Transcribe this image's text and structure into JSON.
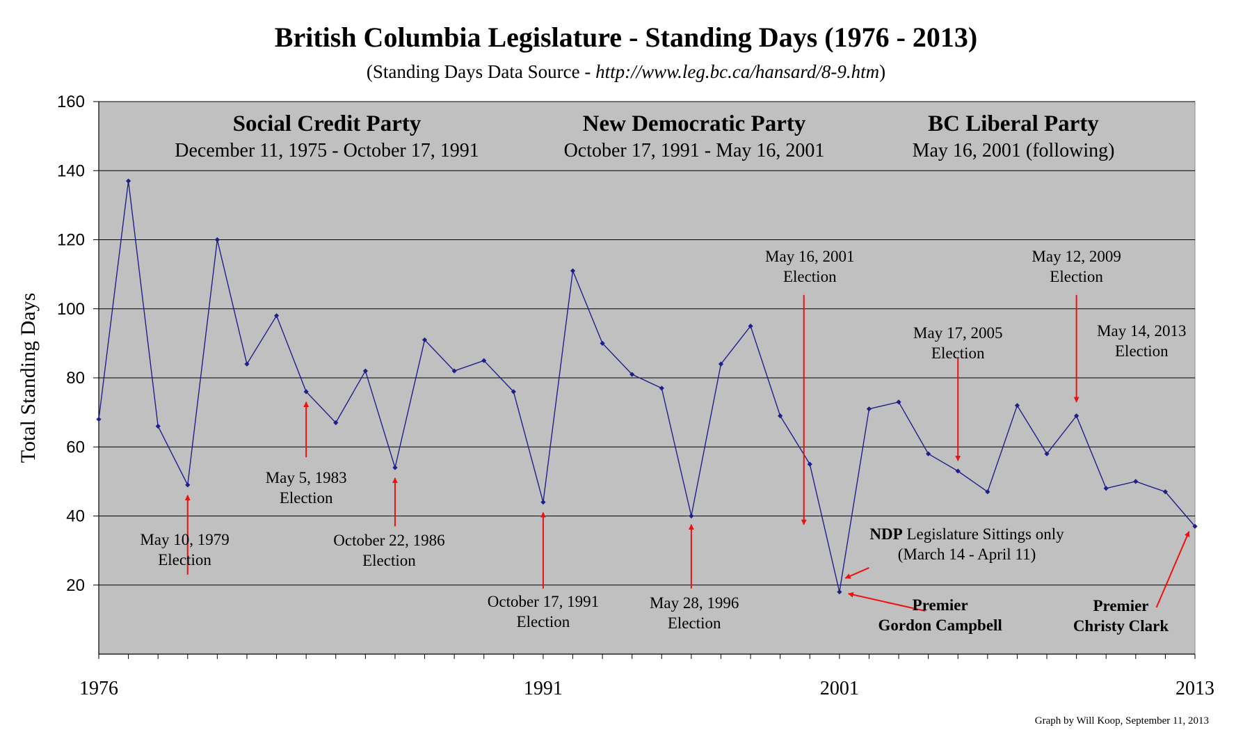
{
  "chart_data": {
    "type": "line",
    "title": "British Columbia Legislature - Standing Days (1976 - 2013)",
    "subtitle_prefix": "(Standing Days Data Source - ",
    "subtitle_url": "http://www.leg.bc.ca/hansard/8-9.htm",
    "subtitle_suffix": ")",
    "ylabel": "Total Standing Days",
    "xlabel": "",
    "xlim": [
      1976,
      2013
    ],
    "ylim": [
      0,
      160
    ],
    "yticks": [
      20,
      40,
      60,
      80,
      100,
      120,
      140,
      160
    ],
    "xticks": [
      1976,
      1991,
      2001,
      2013
    ],
    "grid": true,
    "background_color": "#c0c0c0",
    "line_color": "#1f1f8a",
    "arrow_color": "#ee1111",
    "x": [
      1976,
      1977,
      1978,
      1979,
      1980,
      1981,
      1982,
      1983,
      1984,
      1985,
      1986,
      1987,
      1988,
      1989,
      1990,
      1991,
      1992,
      1993,
      1994,
      1995,
      1996,
      1997,
      1998,
      1999,
      2000,
      2001,
      2002,
      2003,
      2004,
      2005,
      2006,
      2007,
      2008,
      2009,
      2010,
      2011,
      2012,
      2013
    ],
    "values": [
      68,
      137,
      66,
      49,
      120,
      84,
      98,
      76,
      67,
      82,
      54,
      91,
      82,
      85,
      76,
      44,
      111,
      90,
      81,
      77,
      40,
      84,
      95,
      69,
      55,
      18,
      71,
      73,
      58,
      53,
      47,
      72,
      58,
      69,
      48,
      50,
      47,
      37
    ],
    "parties": [
      {
        "name": "Social Credit Party",
        "period": "December 11, 1975 - October 17, 1991"
      },
      {
        "name": "New Democratic Party",
        "period": "October 17, 1991 - May 16, 2001"
      },
      {
        "name": "BC Liberal Party",
        "period": "May 16, 2001 (following)"
      }
    ],
    "annotations": [
      {
        "lines": [
          "May 10, 1979",
          "Election"
        ],
        "bold": false
      },
      {
        "lines": [
          "May 5, 1983",
          "Election"
        ],
        "bold": false
      },
      {
        "lines": [
          "October 22, 1986",
          "Election"
        ],
        "bold": false
      },
      {
        "lines": [
          "October 17, 1991",
          "Election"
        ],
        "bold": false
      },
      {
        "lines": [
          "May 28, 1996",
          "Election"
        ],
        "bold": false
      },
      {
        "lines": [
          "May 16, 2001",
          "Election"
        ],
        "bold": false
      },
      {
        "lines": [
          "May 17, 2005",
          "Election"
        ],
        "bold": false
      },
      {
        "lines": [
          "May 12, 2009",
          "Election"
        ],
        "bold": false
      },
      {
        "lines": [
          "May 14, 2013",
          "Election"
        ],
        "bold": false
      },
      {
        "lines": [
          "Premier",
          "Gordon Campbell"
        ],
        "bold": true
      },
      {
        "lines": [
          "Premier",
          "Christy Clark"
        ],
        "bold": true
      }
    ],
    "ndp_note": {
      "bold": "NDP",
      "rest": " Legislature Sittings only",
      "line2": "(March 14 - April 11)"
    },
    "credit": "Graph by Will Koop, September 11, 2013"
  }
}
